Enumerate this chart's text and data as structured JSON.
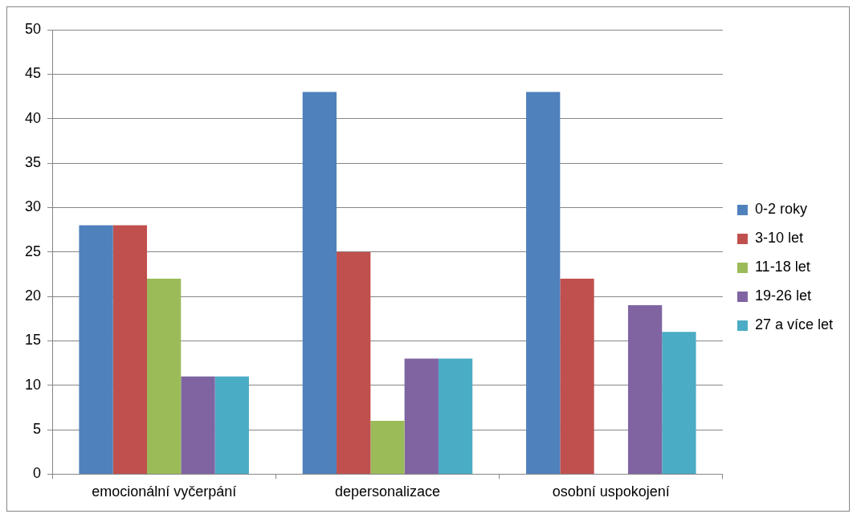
{
  "chart_data": {
    "type": "bar",
    "categories": [
      "emocionální vyčerpání",
      "depersonalizace",
      "osobní uspokojení"
    ],
    "series": [
      {
        "name": "0-2 roky",
        "color": "#4f81bd",
        "values": [
          28,
          43,
          43
        ]
      },
      {
        "name": "3-10 let",
        "color": "#c0504d",
        "values": [
          28,
          25,
          22
        ]
      },
      {
        "name": "11-18 let",
        "color": "#9bbb59",
        "values": [
          22,
          6,
          0
        ]
      },
      {
        "name": "19-26 let",
        "color": "#8064a2",
        "values": [
          11,
          13,
          19
        ]
      },
      {
        "name": "27 a více let",
        "color": "#4bacc6",
        "values": [
          11,
          13,
          16
        ]
      }
    ],
    "ylim": [
      0,
      50
    ],
    "yticks": [
      0,
      5,
      10,
      15,
      20,
      25,
      30,
      35,
      40,
      45,
      50
    ],
    "grid": "y",
    "legend": "right"
  }
}
